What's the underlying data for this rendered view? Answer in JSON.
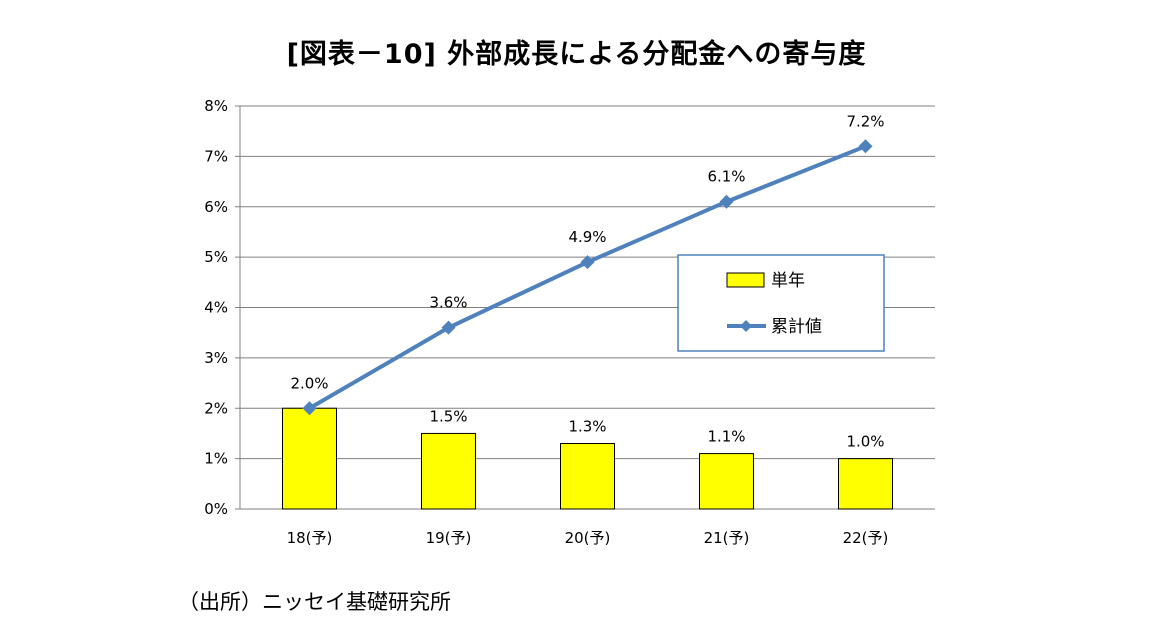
{
  "title": "[図表－10] 外部成長による分配金への寄与度",
  "source": "（出所）ニッセイ基礎研究所",
  "chart_data": {
    "type": "bar+line",
    "categories": [
      "18(予)",
      "19(予)",
      "20(予)",
      "21(予)",
      "22(予)"
    ],
    "ylim": [
      0,
      8
    ],
    "y_ticks": [
      "0%",
      "1%",
      "2%",
      "3%",
      "4%",
      "5%",
      "6%",
      "7%",
      "8%"
    ],
    "grid": true,
    "legend_position": "right",
    "series": [
      {
        "name": "単年",
        "kind": "bar",
        "color": "#FFFF00",
        "edge_color": "#000000",
        "values": [
          2.0,
          1.5,
          1.3,
          1.1,
          1.0
        ],
        "labels": [
          "2.0%",
          "1.5%",
          "1.3%",
          "1.1%",
          "1.0%"
        ]
      },
      {
        "name": "累計値",
        "kind": "line",
        "color": "#4F81BD",
        "marker": "diamond",
        "values": [
          2.0,
          3.6,
          4.9,
          6.1,
          7.2
        ],
        "labels": [
          "2.0%",
          "3.6%",
          "4.9%",
          "6.1%",
          "7.2%"
        ]
      }
    ]
  }
}
